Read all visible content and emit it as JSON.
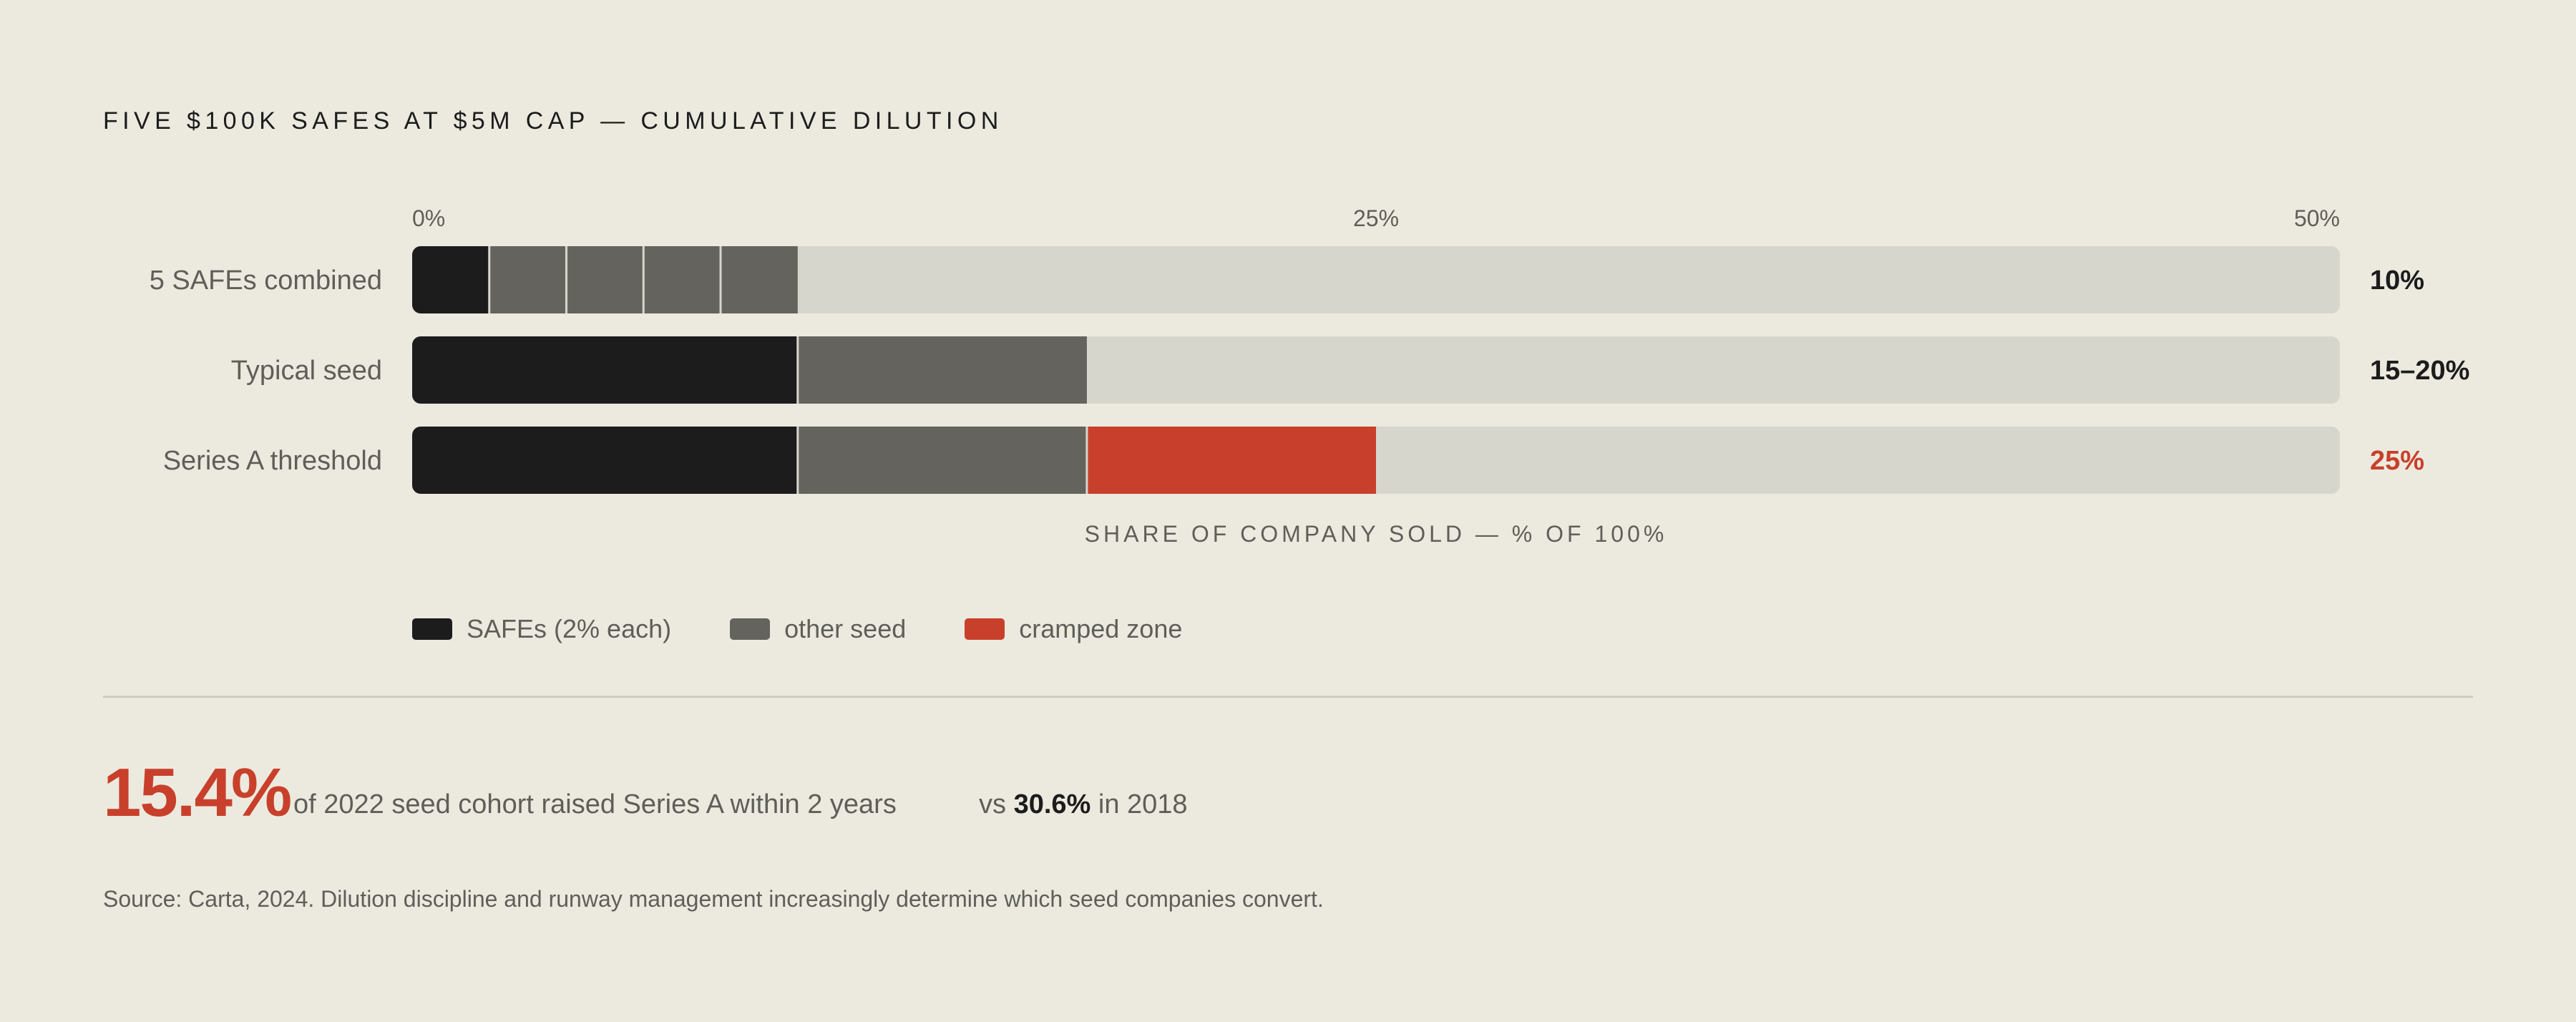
{
  "title": "FIVE $100K SAFES AT $5M CAP — CUMULATIVE DILUTION",
  "colors": {
    "background": "#eceadf",
    "safe": "#1c1c1c",
    "other_seed": "#65635e",
    "cramped": "#c8402b",
    "track": "#d7d6cd",
    "muted_text": "#5f5e59"
  },
  "chart_data": {
    "type": "bar",
    "orientation": "horizontal",
    "stacked": true,
    "xlabel": "SHARE OF COMPANY SOLD — % OF 100%",
    "xlim": [
      0,
      50
    ],
    "ticks": [
      {
        "value": 0,
        "label": "0%"
      },
      {
        "value": 25,
        "label": "25%"
      },
      {
        "value": 50,
        "label": "50%"
      }
    ],
    "categories": [
      "5 SAFEs combined",
      "Typical seed",
      "Series A threshold"
    ],
    "rows": [
      {
        "label": "5 SAFEs combined",
        "total_label": "10%",
        "total_color": "#1c1c1c",
        "segments": [
          {
            "kind": "safe",
            "value": 2
          },
          {
            "kind": "other_seed",
            "value": 2
          },
          {
            "kind": "other_seed",
            "value": 2
          },
          {
            "kind": "other_seed",
            "value": 2
          },
          {
            "kind": "other_seed",
            "value": 2
          }
        ]
      },
      {
        "label": "Typical seed",
        "total_label": "15–20%",
        "total_color": "#1c1c1c",
        "segments": [
          {
            "kind": "safe",
            "value": 10
          },
          {
            "kind": "other_seed",
            "value": 7.5
          }
        ]
      },
      {
        "label": "Series A threshold",
        "total_label": "25%",
        "total_color": "#c8402b",
        "segments": [
          {
            "kind": "safe",
            "value": 10
          },
          {
            "kind": "other_seed",
            "value": 7.5
          },
          {
            "kind": "cramped",
            "value": 7.5
          }
        ]
      }
    ],
    "legend": [
      {
        "kind": "safe",
        "label": "SAFEs (2% each)"
      },
      {
        "kind": "other_seed",
        "label": "other seed"
      },
      {
        "kind": "cramped",
        "label": "cramped zone"
      }
    ],
    "legend_position": "bottom-left",
    "grid": false
  },
  "stat": {
    "value": "15.4%",
    "description": "of 2022 seed cohort raised Series A within 2 years",
    "compare_prefix": "vs",
    "compare_value": "30.6%",
    "compare_suffix": "in 2018"
  },
  "source": "Source: Carta, 2024. Dilution discipline and runway management increasingly determine which seed companies convert."
}
